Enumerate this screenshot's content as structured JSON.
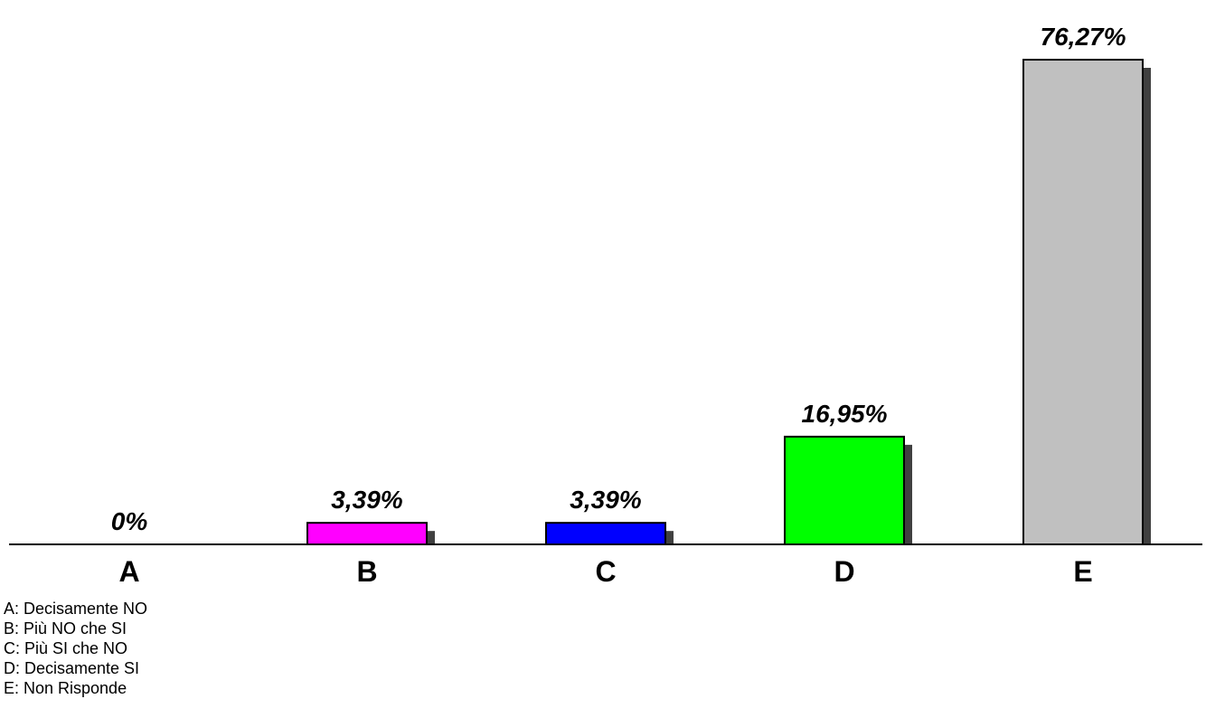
{
  "chart_data": {
    "type": "bar",
    "categories": [
      "A",
      "B",
      "C",
      "D",
      "E"
    ],
    "values": [
      0,
      3.39,
      3.39,
      16.95,
      76.27
    ],
    "value_labels": [
      "0%",
      "3,39%",
      "3,39%",
      "16,95%",
      "76,27%"
    ],
    "colors": [
      "#c0c0c0",
      "#ff00ff",
      "#0000ff",
      "#00ff00",
      "#c0c0c0"
    ],
    "legend": [
      "A: Decisamente NO",
      "B: Più NO che SI",
      "C: Più SI che NO",
      "D: Decisamente SI",
      "E: Non Risponde"
    ],
    "title": "",
    "xlabel": "",
    "ylabel": "",
    "ylim": [
      0,
      76.27
    ],
    "grid": false,
    "legend_placement": "bottom-left"
  }
}
